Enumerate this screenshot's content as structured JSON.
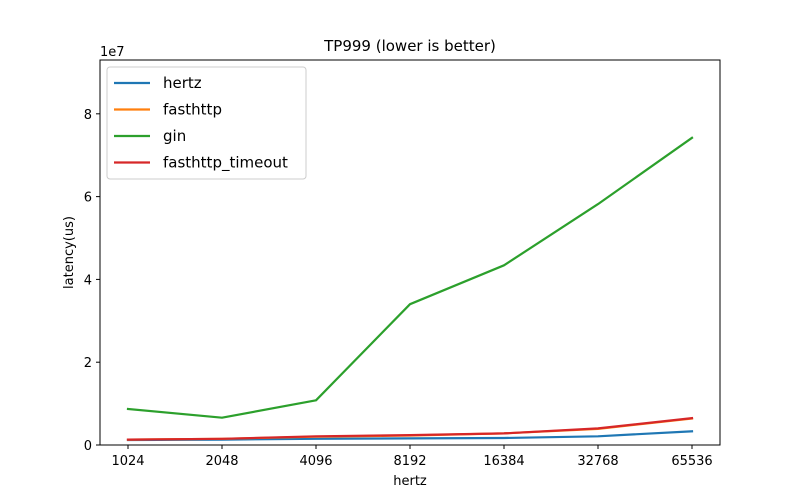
{
  "chart_data": {
    "type": "line",
    "title": "TP999 (lower is better)",
    "xlabel": "hertz",
    "ylabel": "latency(us)",
    "y_offset_text": "1e7",
    "categories": [
      "1024",
      "2048",
      "4096",
      "8192",
      "16384",
      "32768",
      "65536"
    ],
    "ylim": [
      0,
      93000000
    ],
    "y_ticks": [
      0,
      20000000,
      40000000,
      60000000,
      80000000
    ],
    "y_tick_labels": [
      "0",
      "2",
      "4",
      "6",
      "8"
    ],
    "grid": false,
    "legend_position": "top-left",
    "series": [
      {
        "name": "hertz",
        "color": "#1f77b4",
        "values": [
          1200000,
          1300000,
          1500000,
          1600000,
          1700000,
          2100000,
          3300000
        ]
      },
      {
        "name": "fasthttp",
        "color": "#ff7f0e",
        "values": [
          1300000,
          1500000,
          2000000,
          2300000,
          2800000,
          3900000,
          6400000
        ]
      },
      {
        "name": "gin",
        "color": "#2ca02c",
        "values": [
          8700000,
          6600000,
          10800000,
          34000000,
          43400000,
          58200000,
          74200000
        ]
      },
      {
        "name": "fasthttp_timeout",
        "color": "#d62728",
        "values": [
          1300000,
          1500000,
          2100000,
          2400000,
          2800000,
          4000000,
          6500000
        ]
      }
    ]
  }
}
